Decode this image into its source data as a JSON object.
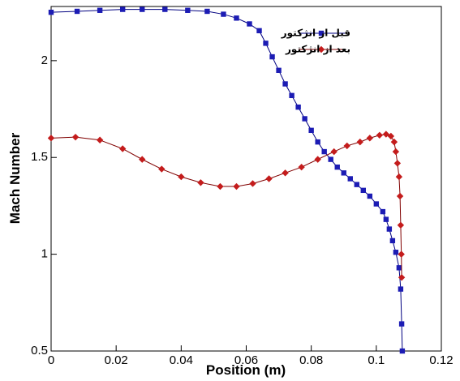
{
  "chart_data": {
    "type": "line",
    "x_label": "Position (m)",
    "y_label": "Mach Number",
    "xlim": [
      0,
      0.12
    ],
    "xticks": [
      0,
      0.02,
      0.04,
      0.06,
      0.08,
      0.1,
      0.12
    ],
    "ylim": [
      0.5,
      2.28
    ],
    "yticks": [
      0.5,
      1,
      1.5,
      2
    ],
    "legend": "top-right",
    "series": [
      {
        "name": "قبل از انژکتور",
        "color": "#000080",
        "marker_color": "#1c1cb4",
        "marker": "square",
        "x": [
          0,
          0.008,
          0.015,
          0.022,
          0.028,
          0.035,
          0.042,
          0.048,
          0.053,
          0.057,
          0.061,
          0.064,
          0.066,
          0.068,
          0.07,
          0.072,
          0.074,
          0.076,
          0.078,
          0.08,
          0.082,
          0.084,
          0.086,
          0.088,
          0.09,
          0.092,
          0.094,
          0.096,
          0.098,
          0.1,
          0.102,
          0.103,
          0.104,
          0.105,
          0.106,
          0.107,
          0.1075,
          0.1078,
          0.108
        ],
        "values": [
          2.25,
          2.255,
          2.26,
          2.265,
          2.265,
          2.265,
          2.26,
          2.255,
          2.24,
          2.22,
          2.19,
          2.155,
          2.09,
          2.02,
          1.95,
          1.88,
          1.82,
          1.76,
          1.7,
          1.64,
          1.58,
          1.53,
          1.49,
          1.45,
          1.42,
          1.39,
          1.36,
          1.33,
          1.3,
          1.26,
          1.22,
          1.18,
          1.13,
          1.07,
          1.01,
          0.93,
          0.82,
          0.64,
          0.5
        ]
      },
      {
        "name": "بعد از انژکتور",
        "color": "#800000",
        "marker_color": "#c41c1c",
        "marker": "diamond",
        "x": [
          0,
          0.0075,
          0.015,
          0.022,
          0.028,
          0.034,
          0.04,
          0.046,
          0.052,
          0.057,
          0.062,
          0.067,
          0.072,
          0.077,
          0.082,
          0.087,
          0.091,
          0.095,
          0.098,
          0.101,
          0.103,
          0.1045,
          0.1055,
          0.106,
          0.1065,
          0.107,
          0.1073,
          0.1075,
          0.1077,
          0.1078
        ],
        "values": [
          1.6,
          1.605,
          1.59,
          1.545,
          1.49,
          1.44,
          1.4,
          1.37,
          1.35,
          1.35,
          1.365,
          1.39,
          1.42,
          1.45,
          1.49,
          1.53,
          1.56,
          1.58,
          1.6,
          1.615,
          1.62,
          1.61,
          1.58,
          1.53,
          1.47,
          1.4,
          1.3,
          1.15,
          1.0,
          0.88
        ]
      }
    ]
  }
}
